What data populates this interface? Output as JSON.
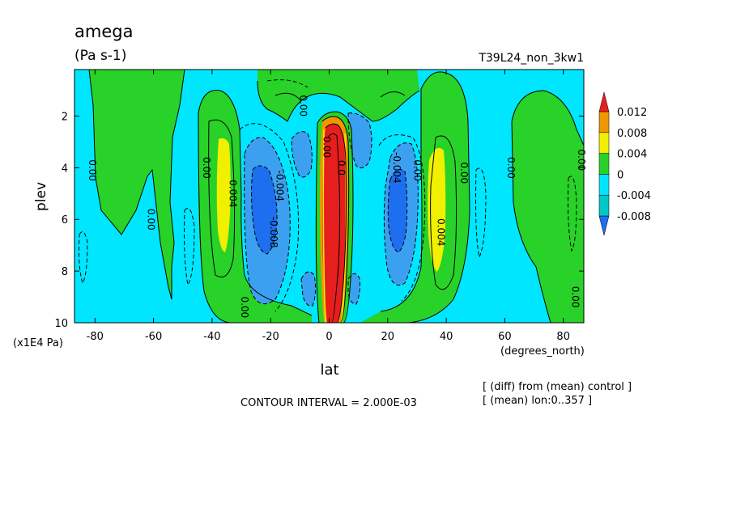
{
  "chart_data": {
    "type": "heatmap",
    "title": "amega",
    "units": "(Pa s-1)",
    "run_label": "T39L24_non_3kw1",
    "xlabel": "lat",
    "xunits": "(degrees_north)",
    "ylabel": "plev",
    "yunits": "(x1E4 Pa)",
    "xlim": [
      -87,
      87
    ],
    "ylim": [
      0.2,
      10
    ],
    "y_inverted": true,
    "x_ticks": [
      -80,
      -60,
      -40,
      -20,
      0,
      20,
      40,
      60,
      80
    ],
    "x_tick_labels": [
      "-80",
      "-60",
      "-40",
      "-20",
      "0",
      "20",
      "40",
      "60",
      "80"
    ],
    "y_ticks": [
      2,
      4,
      6,
      8,
      10
    ],
    "y_tick_labels": [
      "2",
      "4",
      "6",
      "8",
      "10"
    ],
    "contour_interval_text": "CONTOUR INTERVAL = 2.000E-03",
    "notes": [
      "[ (diff) from (mean) control ]",
      "[ (mean) lon:0..357 ]"
    ],
    "colorbar": {
      "levels": [
        -0.008,
        -0.004,
        0,
        0.004,
        0.008,
        0.012
      ],
      "labels": [
        "-0.008",
        "-0.004",
        "0",
        "0.004",
        "0.008",
        "0.012"
      ],
      "colors": [
        "#1e6ef0",
        "#00c8c8",
        "#00e6ff",
        "#28d228",
        "#f0f000",
        "#f09600",
        "#e61e1e"
      ]
    },
    "contour_labels": [
      {
        "text": "0.00",
        "lat": -82,
        "plev": 4.1
      },
      {
        "text": "0.00",
        "lat": -62,
        "plev": 6.0
      },
      {
        "text": "0.00",
        "lat": -43,
        "plev": 4.0
      },
      {
        "text": "0.004",
        "lat": -34,
        "plev": 5.0
      },
      {
        "text": "-0.004",
        "lat": -18,
        "plev": 4.7
      },
      {
        "text": "-0.008",
        "lat": -20,
        "plev": 6.5
      },
      {
        "text": "0.00",
        "lat": -30,
        "plev": 9.4
      },
      {
        "text": "0.00",
        "lat": -10,
        "plev": 1.6
      },
      {
        "text": "0.00",
        "lat": -2,
        "plev": 3.2
      },
      {
        "text": "0.0",
        "lat": 3,
        "plev": 4.0
      },
      {
        "text": "-0.004",
        "lat": 22,
        "plev": 4.0
      },
      {
        "text": "0.00",
        "lat": 29,
        "plev": 4.1
      },
      {
        "text": "0.004",
        "lat": 37,
        "plev": 6.5
      },
      {
        "text": "0.00",
        "lat": 45,
        "plev": 4.2
      },
      {
        "text": "0.00",
        "lat": 61,
        "plev": 4.0
      },
      {
        "text": "0.00",
        "lat": 83,
        "plev": 9.0
      },
      {
        "text": "0.00",
        "lat": 85,
        "plev": 3.7
      }
    ]
  }
}
